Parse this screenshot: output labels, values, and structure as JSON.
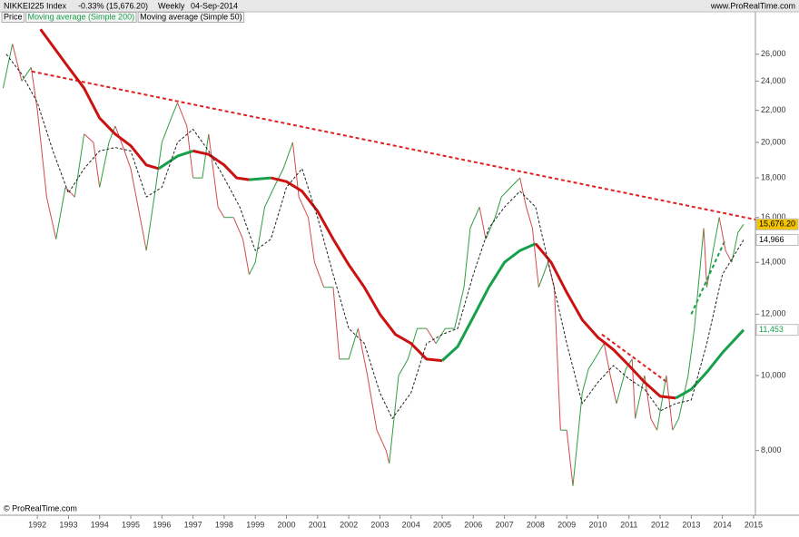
{
  "chart_data": {
    "type": "line",
    "title": "NIKKEI225 Index",
    "change": "-0.33% (15,676.20)",
    "period": "Weekly",
    "date": "04-Sep-2014",
    "source": "www.ProRealTime.com",
    "footer": "© ProRealTime.com",
    "log_scale": true,
    "xlim": [
      1990.8,
      2015.06
    ],
    "ylim": [
      6600,
      28400
    ],
    "xticks": [
      1992,
      1993,
      1994,
      1995,
      1996,
      1997,
      1998,
      1999,
      2000,
      2001,
      2002,
      2003,
      2004,
      2005,
      2006,
      2007,
      2008,
      2009,
      2010,
      2011,
      2012,
      2013,
      2014,
      2015
    ],
    "yticks": [
      {
        "value": 8000,
        "label": "8,000"
      },
      {
        "value": 10000,
        "label": "10,000"
      },
      {
        "value": 12000,
        "label": "12,000"
      },
      {
        "value": 14000,
        "label": "14,000"
      },
      {
        "value": 16000,
        "label": "16,000"
      },
      {
        "value": 18000,
        "label": "18,000"
      },
      {
        "value": 20000,
        "label": "20,000"
      },
      {
        "value": 22000,
        "label": "22,000"
      },
      {
        "value": 24000,
        "label": "24,000"
      },
      {
        "value": 26000,
        "label": "26,000"
      }
    ],
    "series": [
      {
        "name": "Price",
        "color": "#2e9e3e",
        "down_color": "#d24a4a",
        "legend_color": "#000000",
        "width": 1,
        "dash": false,
        "last_label": "15,676.20",
        "label_bg": "#f5c400",
        "label_color": "#000000",
        "x": [
          1990.9,
          1991.2,
          1991.5,
          1991.8,
          1992.0,
          1992.3,
          1992.6,
          1992.9,
          1993.2,
          1993.5,
          1993.8,
          1994.0,
          1994.3,
          1994.5,
          1994.8,
          1995.0,
          1995.3,
          1995.5,
          1995.8,
          1996.0,
          1996.3,
          1996.5,
          1996.8,
          1997.0,
          1997.3,
          1997.5,
          1997.8,
          1998.0,
          1998.3,
          1998.6,
          1998.8,
          1999.0,
          1999.3,
          1999.6,
          1999.9,
          2000.2,
          2000.4,
          2000.7,
          2000.9,
          2001.2,
          2001.5,
          2001.7,
          2002.0,
          2002.3,
          2002.6,
          2002.9,
          2003.2,
          2003.3,
          2003.6,
          2003.9,
          2004.2,
          2004.5,
          2004.8,
          2005.1,
          2005.4,
          2005.7,
          2005.9,
          2006.2,
          2006.4,
          2006.7,
          2006.9,
          2007.2,
          2007.5,
          2007.7,
          2007.9,
          2008.1,
          2008.4,
          2008.6,
          2008.8,
          2009.0,
          2009.2,
          2009.5,
          2009.7,
          2009.9,
          2010.2,
          2010.4,
          2010.6,
          2010.9,
          2011.1,
          2011.2,
          2011.5,
          2011.7,
          2011.9,
          2012.2,
          2012.4,
          2012.6,
          2012.9,
          2013.1,
          2013.3,
          2013.4,
          2013.5,
          2013.7,
          2013.9,
          2014.1,
          2014.3,
          2014.5,
          2014.68
        ],
        "values": [
          23500,
          26800,
          24000,
          25000,
          22000,
          17000,
          15000,
          17500,
          17000,
          20500,
          20000,
          17500,
          20000,
          21000,
          19500,
          18500,
          16000,
          14500,
          17500,
          20000,
          21500,
          22500,
          21000,
          18000,
          18000,
          20500,
          16500,
          16000,
          16000,
          15000,
          13500,
          14000,
          16500,
          17500,
          18500,
          20000,
          17000,
          16000,
          14000,
          13000,
          13000,
          10500,
          10500,
          11500,
          10000,
          8500,
          8000,
          7700,
          10000,
          10500,
          11500,
          11500,
          11000,
          11500,
          11500,
          13000,
          15500,
          16500,
          15000,
          16000,
          17000,
          17500,
          18000,
          16500,
          15500,
          13000,
          14000,
          13000,
          8500,
          8500,
          7200,
          9500,
          10200,
          10500,
          11000,
          10000,
          9200,
          10200,
          10500,
          8800,
          10000,
          8800,
          8500,
          10000,
          8500,
          8800,
          10000,
          11500,
          14000,
          15500,
          13000,
          14500,
          16000,
          14500,
          14000,
          15300,
          15676.2
        ]
      },
      {
        "name": "Moving average (Simple 200)",
        "color": "#16a04a",
        "down_color": "#cc1111",
        "legend_color": "#16a04a",
        "width": 3,
        "dash": false,
        "last_label": "11,453",
        "label_bg": "#ffffff",
        "label_color": "#16a04a",
        "x": [
          1992.1,
          1993.0,
          1993.5,
          1994.0,
          1994.5,
          1995.0,
          1995.5,
          1995.9,
          1996.5,
          1997.0,
          1997.5,
          1998.0,
          1998.4,
          1998.8,
          1999.5,
          2000.0,
          2000.5,
          2001.0,
          2001.5,
          2002.0,
          2002.5,
          2003.0,
          2003.5,
          2004.0,
          2004.5,
          2005.0,
          2005.5,
          2006.0,
          2006.5,
          2007.0,
          2007.5,
          2008.0,
          2008.5,
          2009.0,
          2009.5,
          2010.0,
          2010.5,
          2011.0,
          2011.5,
          2012.0,
          2012.5,
          2013.0,
          2013.5,
          2014.0,
          2014.68
        ],
        "values": [
          28000,
          25000,
          23500,
          21500,
          20500,
          19800,
          18700,
          18500,
          19200,
          19500,
          19300,
          18700,
          18000,
          17900,
          18000,
          17800,
          17300,
          16300,
          15000,
          13900,
          13000,
          12000,
          11300,
          11000,
          10500,
          10450,
          10900,
          11900,
          13000,
          14000,
          14500,
          14800,
          14000,
          12800,
          11800,
          11200,
          10800,
          10300,
          9800,
          9400,
          9350,
          9600,
          10100,
          10700,
          11453
        ]
      },
      {
        "name": "Moving average (Simple 50)",
        "color": "#222222",
        "legend_color": "#000000",
        "width": 1,
        "dash": true,
        "last_label": "14,966",
        "label_bg": "#ffffff",
        "label_color": "#000000",
        "x": [
          1991.0,
          1991.5,
          1992.0,
          1992.5,
          1993.0,
          1993.5,
          1994.0,
          1994.5,
          1995.0,
          1995.5,
          1996.0,
          1996.5,
          1997.0,
          1997.5,
          1998.0,
          1998.5,
          1999.0,
          1999.5,
          2000.0,
          2000.5,
          2001.0,
          2001.5,
          2002.0,
          2002.5,
          2003.0,
          2003.4,
          2004.0,
          2004.5,
          2005.0,
          2005.5,
          2006.0,
          2006.5,
          2007.0,
          2007.5,
          2008.0,
          2008.5,
          2009.0,
          2009.5,
          2010.0,
          2010.5,
          2011.0,
          2011.5,
          2012.0,
          2012.5,
          2013.0,
          2013.5,
          2014.0,
          2014.68
        ],
        "values": [
          26000,
          24500,
          22500,
          19500,
          17200,
          18500,
          19500,
          19700,
          19500,
          17000,
          17500,
          20000,
          20800,
          19500,
          18000,
          16500,
          14500,
          15000,
          17500,
          18500,
          16000,
          13500,
          11500,
          11000,
          9500,
          8800,
          9500,
          11000,
          11300,
          11500,
          13500,
          15500,
          16500,
          17300,
          16500,
          13500,
          11000,
          9200,
          9800,
          10300,
          9900,
          9600,
          9000,
          9200,
          9300,
          11000,
          13500,
          14966
        ]
      }
    ],
    "trendlines": [
      {
        "color": "#e02020",
        "x": [
          1991.82,
          2015.06
        ],
        "values": [
          24700,
          15900
        ]
      },
      {
        "color": "#e02020",
        "x": [
          2010.13,
          2012.23
        ],
        "values": [
          11300,
          9800
        ]
      },
      {
        "color": "#16a04a",
        "x": [
          2013.0,
          2014.1
        ],
        "values": [
          12000,
          15000
        ]
      }
    ]
  }
}
